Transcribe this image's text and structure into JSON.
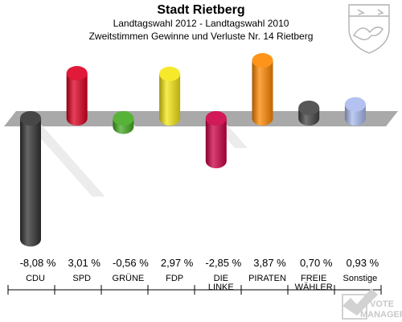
{
  "header": {
    "title": "Stadt Rietberg",
    "subtitle1": "Landtagswahl 2012 - Landtagswahl 2010",
    "subtitle2": "Zweitstimmen Gewinne und Verluste Nr. 14 Rietberg"
  },
  "watermark": {
    "line1": "VOTE",
    "line2": "MANAGER"
  },
  "chart_data": {
    "type": "bar",
    "categories": [
      "CDU",
      "SPD",
      "GRÜNE",
      "FDP",
      "DIE LINKE",
      "PIRATEN",
      "FREIE WÄHLER",
      "Sonstige"
    ],
    "category_lines": [
      [
        "CDU"
      ],
      [
        "SPD"
      ],
      [
        "GRÜNE"
      ],
      [
        "FDP"
      ],
      [
        "DIE",
        "LINKE"
      ],
      [
        "PIRATEN"
      ],
      [
        "FREIE",
        "WÄHLER"
      ],
      [
        "Sonstige"
      ]
    ],
    "values": [
      -8.08,
      3.01,
      -0.56,
      2.97,
      -2.85,
      3.87,
      0.7,
      0.93
    ],
    "value_labels": [
      "-8,08 %",
      "3,01 %",
      "-0,56 %",
      "2,97 %",
      "-2,85 %",
      "3,87 %",
      "0,70 %",
      "0,93 %"
    ],
    "colors": [
      "#333333",
      "#dd0022",
      "#44aa22",
      "#f5e614",
      "#cc0044",
      "#ff8800",
      "#444444",
      "#aabbee"
    ],
    "unit": "%",
    "title": "Landtagswahl 2012 - Landtagswahl 2010",
    "xlabel": "",
    "ylabel": "",
    "grid": false,
    "legend": "none"
  }
}
